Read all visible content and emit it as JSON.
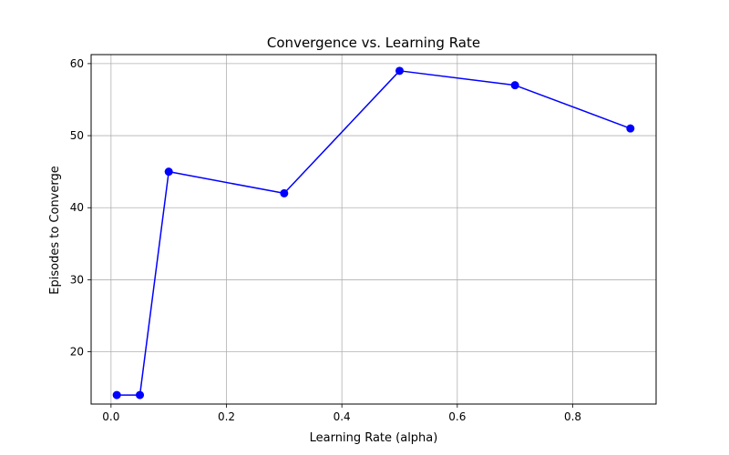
{
  "chart_data": {
    "type": "line",
    "title": "Convergence vs. Learning Rate",
    "xlabel": "Learning Rate (alpha)",
    "ylabel": "Episodes to Converge",
    "xlim": [
      -0.0345,
      0.9445
    ],
    "ylim": [
      12.75,
      61.25
    ],
    "xticks": [
      0.0,
      0.2,
      0.4,
      0.6,
      0.8
    ],
    "xtick_labels": [
      "0.0",
      "0.2",
      "0.4",
      "0.6",
      "0.8"
    ],
    "yticks": [
      20,
      30,
      40,
      50,
      60
    ],
    "ytick_labels": [
      "20",
      "30",
      "40",
      "50",
      "60"
    ],
    "grid": true,
    "series": [
      {
        "x": [
          0.01,
          0.05,
          0.1,
          0.3,
          0.5,
          0.7,
          0.9
        ],
        "y": [
          14,
          14,
          45,
          42,
          59,
          57,
          51
        ],
        "color": "#0000ff",
        "marker": "circle"
      }
    ]
  }
}
